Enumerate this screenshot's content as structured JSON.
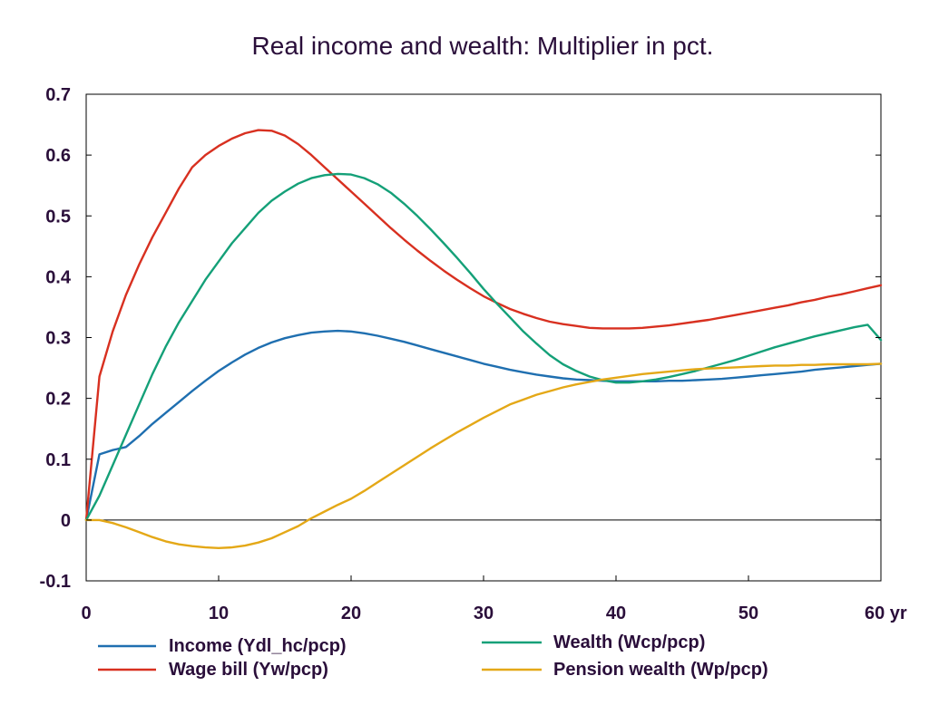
{
  "chart_data": {
    "type": "line",
    "title": "Real income and wealth: Multiplier in pct.",
    "xlabel": "",
    "ylabel": "",
    "x_unit_label": "yr",
    "xlim": [
      0,
      60
    ],
    "ylim": [
      -0.1,
      0.7
    ],
    "x_ticks": [
      0,
      10,
      20,
      30,
      40,
      50,
      60
    ],
    "x_tick_labels": [
      "0",
      "10",
      "20",
      "30",
      "40",
      "50",
      "60 yr"
    ],
    "y_ticks": [
      -0.1,
      0,
      0.1,
      0.2,
      0.3,
      0.4,
      0.5,
      0.6,
      0.7
    ],
    "y_tick_labels": [
      "-0.1",
      "0",
      "0.1",
      "0.2",
      "0.3",
      "0.4",
      "0.5",
      "0.6",
      "0.7"
    ],
    "grid": false,
    "legend_position": "bottom",
    "x": [
      0,
      1,
      2,
      3,
      4,
      5,
      6,
      7,
      8,
      9,
      10,
      11,
      12,
      13,
      14,
      15,
      16,
      17,
      18,
      19,
      20,
      21,
      22,
      23,
      24,
      25,
      26,
      27,
      28,
      29,
      30,
      31,
      32,
      33,
      34,
      35,
      36,
      37,
      38,
      39,
      40,
      41,
      42,
      43,
      44,
      45,
      46,
      47,
      48,
      49,
      50,
      51,
      52,
      53,
      54,
      55,
      56,
      57,
      58,
      59,
      60
    ],
    "series": [
      {
        "name": "Income (Ydl_hc/pcp)",
        "color": "#1f6fb0",
        "values": [
          0,
          0.108,
          0.115,
          0.12,
          0.138,
          0.158,
          0.176,
          0.194,
          0.212,
          0.229,
          0.245,
          0.259,
          0.272,
          0.283,
          0.292,
          0.299,
          0.304,
          0.308,
          0.31,
          0.311,
          0.31,
          0.307,
          0.303,
          0.298,
          0.293,
          0.287,
          0.281,
          0.275,
          0.269,
          0.263,
          0.257,
          0.252,
          0.247,
          0.243,
          0.239,
          0.236,
          0.233,
          0.231,
          0.23,
          0.229,
          0.228,
          0.228,
          0.228,
          0.228,
          0.229,
          0.229,
          0.23,
          0.231,
          0.232,
          0.234,
          0.236,
          0.238,
          0.24,
          0.242,
          0.244,
          0.247,
          0.249,
          0.251,
          0.253,
          0.255,
          0.257
        ]
      },
      {
        "name": "Wage bill (Yw/pcp)",
        "color": "#d83020",
        "values": [
          0,
          0.236,
          0.31,
          0.37,
          0.42,
          0.465,
          0.505,
          0.545,
          0.58,
          0.6,
          0.615,
          0.627,
          0.636,
          0.641,
          0.64,
          0.632,
          0.618,
          0.6,
          0.58,
          0.56,
          0.54,
          0.52,
          0.5,
          0.48,
          0.461,
          0.443,
          0.426,
          0.41,
          0.395,
          0.381,
          0.368,
          0.357,
          0.347,
          0.339,
          0.332,
          0.326,
          0.322,
          0.319,
          0.316,
          0.315,
          0.315,
          0.315,
          0.316,
          0.318,
          0.32,
          0.323,
          0.326,
          0.329,
          0.333,
          0.337,
          0.341,
          0.345,
          0.349,
          0.353,
          0.358,
          0.362,
          0.367,
          0.371,
          0.376,
          0.381,
          0.386
        ]
      },
      {
        "name": "Wealth (Wcp/pcp)",
        "color": "#14a078",
        "values": [
          0,
          0.04,
          0.09,
          0.14,
          0.19,
          0.24,
          0.285,
          0.325,
          0.36,
          0.395,
          0.425,
          0.455,
          0.48,
          0.505,
          0.525,
          0.54,
          0.553,
          0.562,
          0.567,
          0.569,
          0.568,
          0.562,
          0.552,
          0.538,
          0.52,
          0.5,
          0.478,
          0.455,
          0.431,
          0.406,
          0.38,
          0.356,
          0.333,
          0.31,
          0.29,
          0.271,
          0.256,
          0.245,
          0.236,
          0.23,
          0.226,
          0.226,
          0.228,
          0.231,
          0.235,
          0.24,
          0.245,
          0.251,
          0.257,
          0.263,
          0.27,
          0.277,
          0.284,
          0.29,
          0.296,
          0.302,
          0.307,
          0.312,
          0.317,
          0.321,
          0.296
        ]
      },
      {
        "name": "Pension wealth (Wp/pcp)",
        "color": "#e4a817",
        "values": [
          0,
          0,
          -0.005,
          -0.012,
          -0.02,
          -0.028,
          -0.035,
          -0.04,
          -0.043,
          -0.045,
          -0.046,
          -0.045,
          -0.042,
          -0.037,
          -0.03,
          -0.02,
          -0.01,
          0.003,
          0.014,
          0.025,
          0.035,
          0.048,
          0.062,
          0.076,
          0.09,
          0.104,
          0.118,
          0.131,
          0.144,
          0.156,
          0.168,
          0.179,
          0.19,
          0.198,
          0.206,
          0.212,
          0.218,
          0.223,
          0.227,
          0.231,
          0.234,
          0.237,
          0.24,
          0.242,
          0.244,
          0.246,
          0.248,
          0.249,
          0.25,
          0.251,
          0.252,
          0.253,
          0.254,
          0.254,
          0.255,
          0.255,
          0.256,
          0.256,
          0.256,
          0.256,
          0.257
        ]
      }
    ]
  }
}
